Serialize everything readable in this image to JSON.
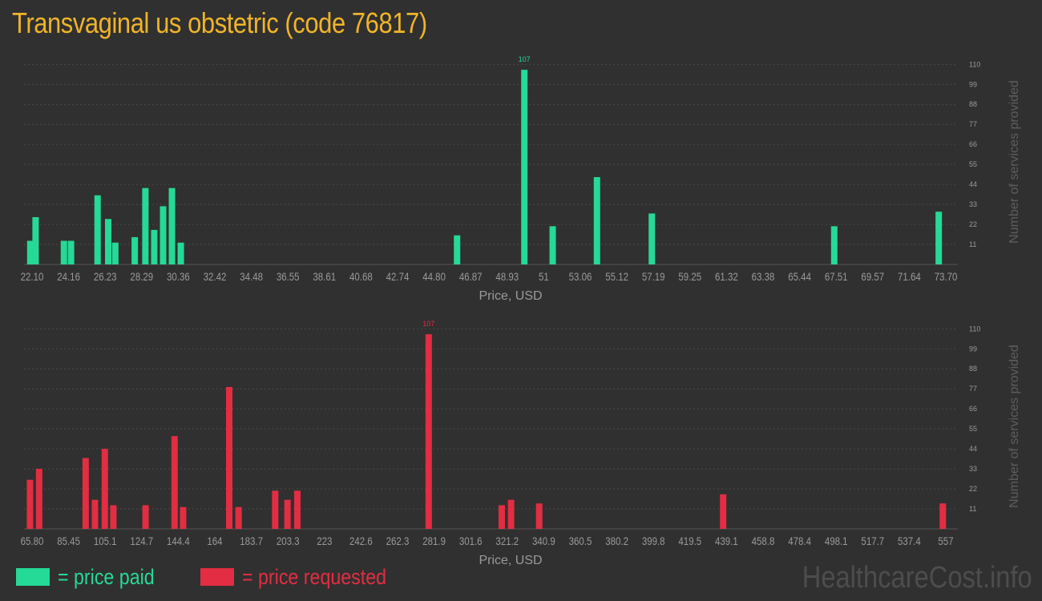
{
  "title": "Transvaginal us obstetric (code 76817)",
  "legend": {
    "paid_label": "= price paid",
    "requested_label": "= price requested"
  },
  "watermark": "HealthcareCost.info",
  "colors": {
    "background": "#303030",
    "title": "#f0b429",
    "paid": "#25d996",
    "requested": "#e32d42",
    "axis_text": "#9a9a9a",
    "grid": "#4a4a4a"
  },
  "chart_data": [
    {
      "type": "bar",
      "name": "price paid",
      "xlabel": "Price, USD",
      "ylabel": "Number of services provided",
      "x_ticks": [
        "22.10",
        "24.16",
        "26.23",
        "28.29",
        "30.36",
        "32.42",
        "34.48",
        "36.55",
        "38.61",
        "40.68",
        "42.74",
        "44.80",
        "46.87",
        "48.93",
        "51",
        "53.06",
        "55.12",
        "57.19",
        "59.25",
        "61.32",
        "63.38",
        "65.44",
        "67.51",
        "69.57",
        "71.64",
        "73.70"
      ],
      "x_range": [
        22.1,
        73.7
      ],
      "y_ticks": [
        11,
        22,
        33,
        44,
        55,
        66,
        77,
        88,
        99,
        110
      ],
      "ylim": [
        0,
        110
      ],
      "grid": true,
      "bars": [
        {
          "x": 22.0,
          "y": 13
        },
        {
          "x": 22.3,
          "y": 26
        },
        {
          "x": 23.9,
          "y": 13
        },
        {
          "x": 24.3,
          "y": 13
        },
        {
          "x": 25.8,
          "y": 38
        },
        {
          "x": 26.4,
          "y": 25
        },
        {
          "x": 26.8,
          "y": 12
        },
        {
          "x": 27.9,
          "y": 15
        },
        {
          "x": 28.5,
          "y": 42
        },
        {
          "x": 29.0,
          "y": 19
        },
        {
          "x": 29.5,
          "y": 32
        },
        {
          "x": 30.0,
          "y": 42
        },
        {
          "x": 30.5,
          "y": 12
        },
        {
          "x": 46.1,
          "y": 16
        },
        {
          "x": 49.9,
          "y": 107,
          "label": "107"
        },
        {
          "x": 51.5,
          "y": 21
        },
        {
          "x": 54.0,
          "y": 48
        },
        {
          "x": 57.1,
          "y": 28
        },
        {
          "x": 67.4,
          "y": 21
        },
        {
          "x": 73.3,
          "y": 29
        }
      ]
    },
    {
      "type": "bar",
      "name": "price requested",
      "xlabel": "Price, USD",
      "ylabel": "Number of services provided",
      "x_ticks": [
        "65.80",
        "85.45",
        "105.1",
        "124.7",
        "144.4",
        "164",
        "183.7",
        "203.3",
        "223",
        "242.6",
        "262.3",
        "281.9",
        "301.6",
        "321.2",
        "340.9",
        "360.5",
        "380.2",
        "399.8",
        "419.5",
        "439.1",
        "458.8",
        "478.4",
        "498.1",
        "517.7",
        "537.4",
        "557"
      ],
      "x_range": [
        65.8,
        557
      ],
      "y_ticks": [
        11,
        22,
        33,
        44,
        55,
        66,
        77,
        88,
        99,
        110
      ],
      "ylim": [
        0,
        110
      ],
      "grid": true,
      "bars": [
        {
          "x": 64.7,
          "y": 27
        },
        {
          "x": 69.6,
          "y": 33
        },
        {
          "x": 94.6,
          "y": 39
        },
        {
          "x": 99.6,
          "y": 16
        },
        {
          "x": 104.9,
          "y": 44
        },
        {
          "x": 109.5,
          "y": 13
        },
        {
          "x": 126.8,
          "y": 13
        },
        {
          "x": 142.4,
          "y": 51
        },
        {
          "x": 147.0,
          "y": 12
        },
        {
          "x": 171.8,
          "y": 78
        },
        {
          "x": 176.8,
          "y": 12
        },
        {
          "x": 196.5,
          "y": 21
        },
        {
          "x": 203.1,
          "y": 16
        },
        {
          "x": 208.4,
          "y": 21
        },
        {
          "x": 279.0,
          "y": 107,
          "label": "107"
        },
        {
          "x": 318.3,
          "y": 13
        },
        {
          "x": 323.3,
          "y": 16
        },
        {
          "x": 338.4,
          "y": 14
        },
        {
          "x": 437.3,
          "y": 19
        },
        {
          "x": 555.4,
          "y": 14
        }
      ]
    }
  ]
}
